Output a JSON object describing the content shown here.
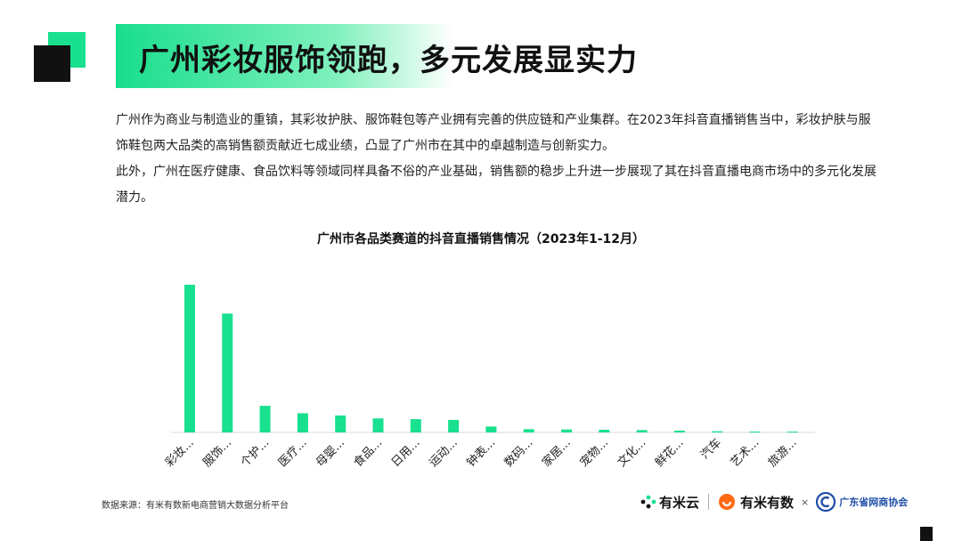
{
  "slide": {
    "title": "广州彩妆服饰领跑，多元发展显实力",
    "paragraph1": "广州作为商业与制造业的重镇，其彩妆护肤、服饰鞋包等产业拥有完善的供应链和产业集群。在2023年抖音直播销售当中，彩妆护肤与服饰鞋包两大品类的高销售额贡献近七成业绩，凸显了广州市在其中的卓越制造与创新实力。",
    "paragraph2": "此外，广州在医疗健康、食品饮料等领域同样具备不俗的产业基础，销售额的稳步上升进一步展现了其在抖音直播电商市场中的多元化发展潜力。",
    "source": "数据来源：有米有数新电商营销大数据分析平台"
  },
  "logos": {
    "youmi_cloud": "有米云",
    "youmi_data": "有米有数",
    "cross": "×",
    "association": "广东省网商协会"
  },
  "colors": {
    "accent": "#19e08f",
    "bar": "#19e08f",
    "dark": "#111111",
    "association_blue": "#1f4fa8"
  },
  "chart_data": {
    "type": "bar",
    "title": "广州市各品类赛道的抖音直播销售情况（2023年1-12月）",
    "categories": [
      "彩妆...",
      "服饰...",
      "个护...",
      "医疗...",
      "母婴...",
      "食品...",
      "日用...",
      "运动...",
      "钟表...",
      "数码...",
      "家居...",
      "宠物...",
      "文化...",
      "鲜花...",
      "汽车",
      "艺术...",
      "旅游..."
    ],
    "values": [
      100,
      80.5,
      18,
      13,
      11.5,
      9.5,
      9,
      8.5,
      4,
      2.2,
      2,
      1.8,
      1.6,
      1.2,
      0.8,
      0.6,
      0.2
    ],
    "xlabel": "",
    "ylabel": "",
    "ylim": [
      0,
      100
    ],
    "grid": false,
    "legend": "none",
    "axis_values_shown": false
  }
}
